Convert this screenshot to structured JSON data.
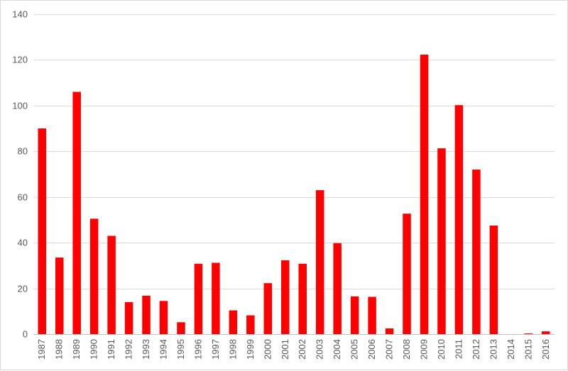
{
  "chart_data": {
    "type": "bar",
    "title": "",
    "xlabel": "",
    "ylabel": "",
    "ylim": [
      0,
      140
    ],
    "yticks": [
      0,
      20,
      40,
      60,
      80,
      100,
      120,
      140
    ],
    "grid": true,
    "legend": "none",
    "bar_color": "#ff0000",
    "categories": [
      "1987",
      "1988",
      "1989",
      "1990",
      "1991",
      "1992",
      "1993",
      "1994",
      "1995",
      "1996",
      "1997",
      "1998",
      "1999",
      "2000",
      "2001",
      "2002",
      "2003",
      "2004",
      "2005",
      "2006",
      "2007",
      "2008",
      "2009",
      "2010",
      "2011",
      "2012",
      "2013",
      "2014",
      "2015",
      "2016"
    ],
    "values": [
      90,
      33.5,
      106,
      50.5,
      43,
      14,
      16.8,
      14.5,
      5.2,
      30.8,
      31.2,
      10.4,
      8.2,
      22.3,
      32.3,
      30.8,
      63,
      39.8,
      16.5,
      16.3,
      2.5,
      52.7,
      122.3,
      81.3,
      100.2,
      72,
      47.5,
      0,
      0.3,
      1.2
    ]
  }
}
